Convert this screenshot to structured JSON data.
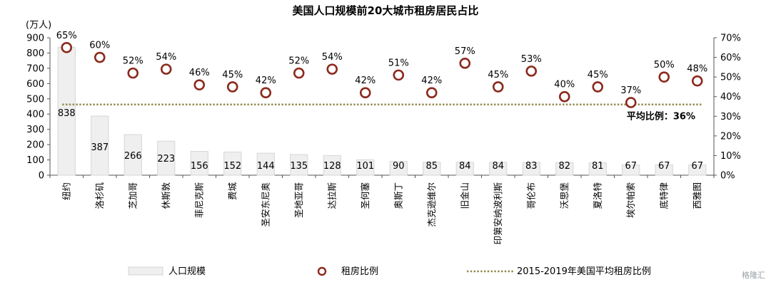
{
  "watermark": "格隆汇",
  "chart_data": {
    "type": "bar+scatter",
    "title": "美国人口规模前20大城市租房居民占比",
    "left_axis_unit": "(万人)",
    "categories": [
      "纽约",
      "洛杉矶",
      "芝加哥",
      "休斯敦",
      "菲尼克斯",
      "费城",
      "圣安东尼奥",
      "圣地亚哥",
      "达拉斯",
      "圣何塞",
      "奥斯丁",
      "杰克逊维尔",
      "旧金山",
      "印第安纳波利斯",
      "哥伦布",
      "沃思堡",
      "夏洛特",
      "埃尔帕索",
      "底特律",
      "西雅图"
    ],
    "population": [
      838,
      387,
      266,
      223,
      156,
      152,
      144,
      135,
      128,
      101,
      90,
      85,
      84,
      84,
      83,
      82,
      81,
      67,
      67,
      67
    ],
    "population_labels": [
      "838",
      "387",
      "266",
      "223",
      "156",
      "152",
      "144",
      "135",
      "128",
      "101",
      "90",
      "85",
      "84",
      "84",
      "83",
      "82",
      "81",
      "67",
      "67",
      "67"
    ],
    "rent_ratio": [
      65,
      60,
      52,
      54,
      46,
      45,
      42,
      52,
      54,
      42,
      51,
      42,
      57,
      45,
      53,
      40,
      45,
      37,
      50,
      48
    ],
    "rent_ratio_labels": [
      "65%",
      "60%",
      "52%",
      "54%",
      "46%",
      "45%",
      "42%",
      "52%",
      "54%",
      "42%",
      "51%",
      "42%",
      "57%",
      "45%",
      "53%",
      "40%",
      "45%",
      "37%",
      "50%",
      "48%"
    ],
    "average_ratio": 36,
    "average_label": "平均比例：36%",
    "left_ylim": [
      0,
      900
    ],
    "left_ticks": [
      "0",
      "100",
      "200",
      "300",
      "400",
      "500",
      "600",
      "700",
      "800",
      "900"
    ],
    "right_ylim": [
      0,
      70
    ],
    "right_ticks": [
      "0%",
      "10%",
      "20%",
      "30%",
      "40%",
      "50%",
      "60%",
      "70%"
    ],
    "legend": {
      "bar": "人口规模",
      "marker": "租房比例",
      "line": "2015-2019年美国平均租房比例"
    },
    "colors": {
      "bar_fill": "#efefef",
      "bar_stroke": "#d6d6d6",
      "marker_stroke": "#8b2a1e",
      "marker_fill": "#ffffff",
      "avg_line": "#8f8a4d",
      "axis": "#555555"
    }
  }
}
